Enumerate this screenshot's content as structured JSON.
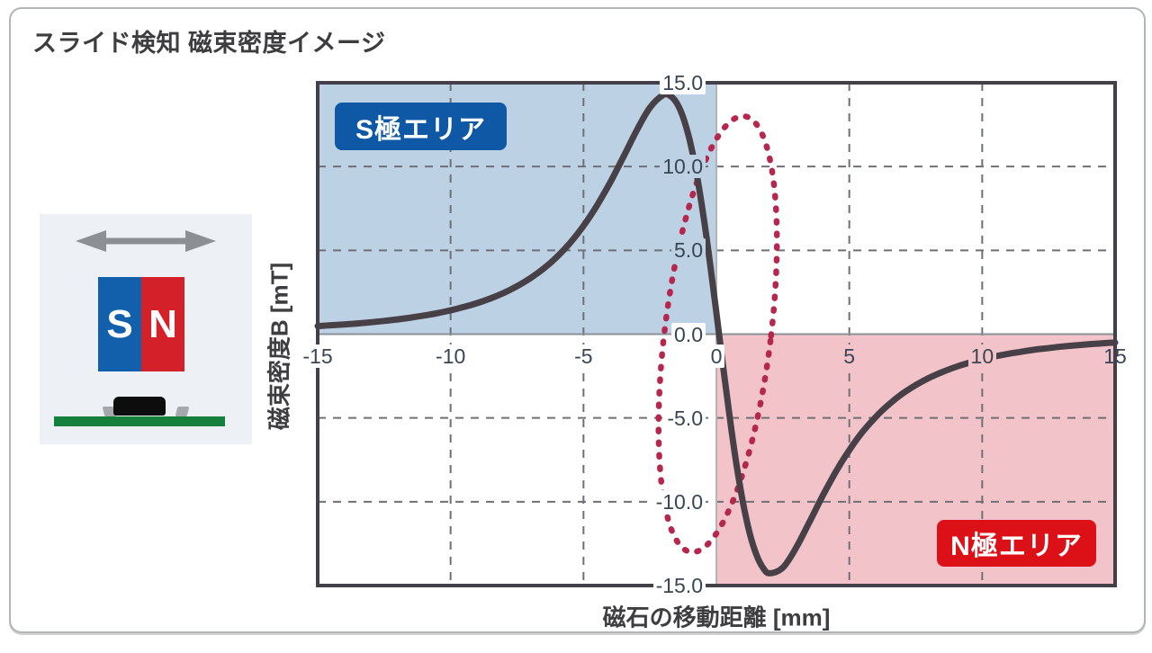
{
  "page": {
    "title": "スライド検知 磁束密度イメージ"
  },
  "magnet_diagram": {
    "arrow_icon": "left-right-arrow",
    "s_pole_label": "S",
    "n_pole_label": "N",
    "colors": {
      "s_pole": "#1260ab",
      "n_pole": "#d42029",
      "arrow": "#8d9093",
      "panel_bg": "#edf0f4",
      "sensor_body": "#0d0d0d",
      "sensor_leads": "#a6a9ac",
      "pcb": "#15803c"
    }
  },
  "chart_data": {
    "type": "line",
    "title": "",
    "xlabel": "磁石の移動距離 [mm]",
    "ylabel": "磁束密度B [mT]",
    "xlim": [
      -15,
      15
    ],
    "ylim": [
      -15,
      15
    ],
    "grid": "dashed every 5 units, solid light axes at 0",
    "legend_position": "none",
    "x_ticks": [
      -15,
      -10,
      -5,
      0,
      5,
      10,
      15
    ],
    "x_tick_labels": [
      "-15",
      "-10",
      "-5",
      "0",
      "5",
      "10",
      "15"
    ],
    "y_ticks": [
      15,
      10,
      5,
      0,
      -5,
      -10,
      -15
    ],
    "y_tick_labels": [
      "15.0",
      "10.0",
      "5.0",
      "0.0",
      "-5.0",
      "-10.0",
      "-15.0"
    ],
    "regions": [
      {
        "label": "S極エリア",
        "x_range": [
          -15,
          0
        ],
        "y_range": [
          0,
          15
        ],
        "fill": "#bdd1e5",
        "badge_color": "#0e58a6"
      },
      {
        "label": "N極エリア",
        "x_range": [
          0,
          15
        ],
        "y_range": [
          -15,
          0
        ],
        "fill": "#f2c4ca",
        "badge_color": "#dc1117"
      }
    ],
    "series": [
      {
        "name": "磁束密度B",
        "color": "#474047",
        "points": [
          [
            -15,
            0.48
          ],
          [
            -14.5,
            0.53
          ],
          [
            -14,
            0.58
          ],
          [
            -13.5,
            0.64
          ],
          [
            -13,
            0.71
          ],
          [
            -12.5,
            0.79
          ],
          [
            -12,
            0.88
          ],
          [
            -11.5,
            0.99
          ],
          [
            -11,
            1.11
          ],
          [
            -10.5,
            1.25
          ],
          [
            -10,
            1.42
          ],
          [
            -9.5,
            1.62
          ],
          [
            -9,
            1.85
          ],
          [
            -8.5,
            2.13
          ],
          [
            -8,
            2.46
          ],
          [
            -7.5,
            2.86
          ],
          [
            -7,
            3.34
          ],
          [
            -6.5,
            3.91
          ],
          [
            -6,
            4.61
          ],
          [
            -5.5,
            5.45
          ],
          [
            -5,
            6.46
          ],
          [
            -4.5,
            7.66
          ],
          [
            -4,
            9.04
          ],
          [
            -3.5,
            10.57
          ],
          [
            -3,
            12.15
          ],
          [
            -2.5,
            13.52
          ],
          [
            -2,
            14.27
          ],
          [
            -1.75,
            14.23
          ],
          [
            -1.5,
            13.81
          ],
          [
            -1.25,
            12.93
          ],
          [
            -1,
            11.54
          ],
          [
            -0.75,
            9.61
          ],
          [
            -0.5,
            7.19
          ],
          [
            -0.25,
            4.36
          ],
          [
            0,
            1.27
          ],
          [
            0.25,
            -1.9
          ],
          [
            0.5,
            -4.95
          ],
          [
            0.75,
            -7.71
          ],
          [
            1,
            -10.04
          ],
          [
            1.25,
            -11.86
          ],
          [
            1.5,
            -13.14
          ],
          [
            1.75,
            -13.93
          ],
          [
            2,
            -14.27
          ],
          [
            2.5,
            -13.93
          ],
          [
            3,
            -12.74
          ],
          [
            3.5,
            -11.21
          ],
          [
            4,
            -9.64
          ],
          [
            4.5,
            -8.19
          ],
          [
            5,
            -6.92
          ],
          [
            5.5,
            -5.83
          ],
          [
            6,
            -4.93
          ],
          [
            6.5,
            -4.18
          ],
          [
            7,
            -3.55
          ],
          [
            7.5,
            -3.04
          ],
          [
            8,
            -2.61
          ],
          [
            8.5,
            -2.26
          ],
          [
            9,
            -1.96
          ],
          [
            9.5,
            -1.71
          ],
          [
            10,
            -1.5
          ],
          [
            10.5,
            -1.32
          ],
          [
            11,
            -1.17
          ],
          [
            11.5,
            -1.04
          ],
          [
            12,
            -0.92
          ],
          [
            12.5,
            -0.83
          ],
          [
            13,
            -0.74
          ],
          [
            13.5,
            -0.67
          ],
          [
            14,
            -0.6
          ],
          [
            14.5,
            -0.55
          ],
          [
            15,
            -0.5
          ]
        ]
      }
    ],
    "annotation_ellipse": {
      "center": [
        0.05,
        0
      ],
      "rx": 2.0,
      "ry": 13.1,
      "rotation_deg": 7,
      "style": "dotted",
      "color": "#b5274d"
    }
  }
}
